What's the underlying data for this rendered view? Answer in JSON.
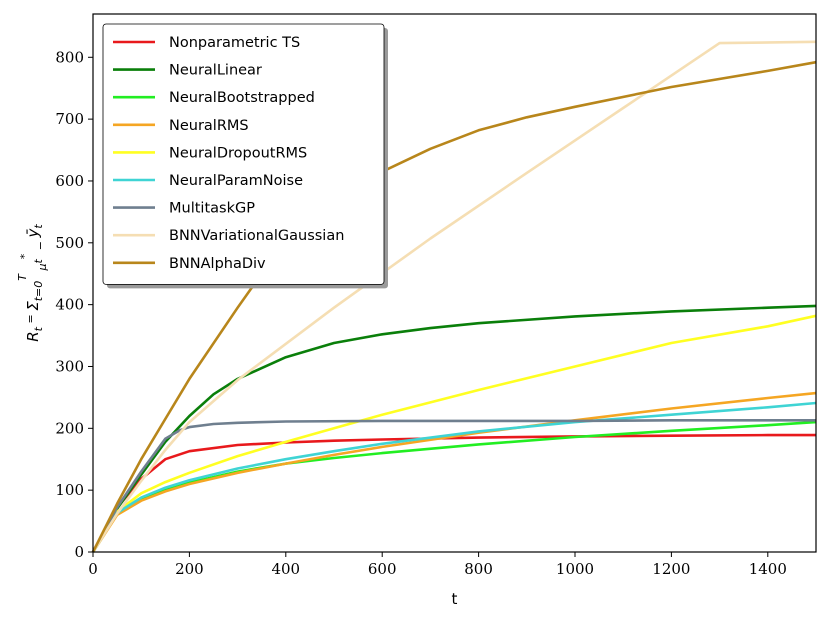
{
  "chart_data": {
    "type": "line",
    "xlabel": "t",
    "ylabel": "R_t = Σ_{t=0}^{T} μ*_t − ȳ_t",
    "xlim": [
      0,
      1500
    ],
    "ylim": [
      0,
      870
    ],
    "xticks": [
      0,
      200,
      400,
      600,
      800,
      1000,
      1200,
      1400
    ],
    "yticks": [
      0,
      100,
      200,
      300,
      400,
      500,
      600,
      700,
      800
    ],
    "grid": false,
    "legend_position": "top-left",
    "series": [
      {
        "name": "Nonparametric TS",
        "color": "#e8191c",
        "x": [
          0,
          50,
          100,
          150,
          200,
          300,
          400,
          500,
          600,
          800,
          1000,
          1200,
          1400,
          1500
        ],
        "values": [
          0,
          72,
          118,
          150,
          163,
          173,
          177,
          180,
          182,
          185,
          187,
          188,
          189,
          189
        ]
      },
      {
        "name": "NeuralLinear",
        "color": "#0a7f0a",
        "x": [
          0,
          50,
          100,
          150,
          200,
          250,
          300,
          400,
          500,
          600,
          700,
          800,
          1000,
          1200,
          1400,
          1500
        ],
        "values": [
          0,
          70,
          125,
          178,
          220,
          255,
          280,
          315,
          338,
          352,
          362,
          370,
          381,
          389,
          395,
          398
        ]
      },
      {
        "name": "NeuralBootstrapped",
        "color": "#22ee22",
        "x": [
          0,
          50,
          100,
          150,
          200,
          300,
          400,
          500,
          600,
          800,
          1000,
          1200,
          1400,
          1500
        ],
        "values": [
          0,
          62,
          85,
          100,
          112,
          130,
          143,
          152,
          160,
          174,
          186,
          196,
          205,
          210
        ]
      },
      {
        "name": "NeuralRMS",
        "color": "#f5a623",
        "x": [
          0,
          50,
          100,
          150,
          200,
          300,
          400,
          500,
          600,
          800,
          1000,
          1200,
          1400,
          1500
        ],
        "values": [
          0,
          60,
          83,
          98,
          110,
          128,
          143,
          157,
          170,
          193,
          213,
          232,
          249,
          257
        ]
      },
      {
        "name": "NeuralDropoutRMS",
        "color": "#ffff22",
        "x": [
          0,
          50,
          100,
          150,
          200,
          300,
          400,
          500,
          600,
          800,
          1000,
          1200,
          1400,
          1500
        ],
        "values": [
          0,
          65,
          95,
          113,
          128,
          155,
          178,
          200,
          222,
          262,
          300,
          338,
          365,
          382
        ]
      },
      {
        "name": "NeuralParamNoise",
        "color": "#3fd4d4",
        "x": [
          0,
          50,
          100,
          150,
          200,
          300,
          400,
          500,
          600,
          800,
          1000,
          1200,
          1400,
          1500
        ],
        "values": [
          0,
          63,
          88,
          104,
          116,
          135,
          150,
          163,
          175,
          195,
          210,
          222,
          234,
          241
        ]
      },
      {
        "name": "MultitaskGP",
        "color": "#6f7f8f",
        "x": [
          0,
          50,
          100,
          150,
          180,
          200,
          250,
          300,
          400,
          600,
          800,
          1000,
          1200,
          1500
        ],
        "values": [
          0,
          72,
          130,
          183,
          197,
          202,
          207,
          209,
          211,
          212,
          212,
          212,
          213,
          213
        ]
      },
      {
        "name": "BNNVariationalGaussian",
        "color": "#f5deb3",
        "x": [
          0,
          50,
          100,
          150,
          200,
          300,
          500,
          700,
          900,
          1100,
          1300,
          1500
        ],
        "values": [
          0,
          62,
          115,
          165,
          210,
          278,
          395,
          507,
          613,
          718,
          823,
          825
        ]
      },
      {
        "name": "BNNAlphaDiv",
        "color": "#b8861b",
        "x": [
          0,
          50,
          100,
          150,
          200,
          300,
          400,
          500,
          600,
          700,
          800,
          900,
          1000,
          1200,
          1400,
          1500
        ],
        "values": [
          0,
          78,
          150,
          215,
          280,
          395,
          505,
          570,
          615,
          652,
          682,
          703,
          720,
          752,
          778,
          792
        ]
      }
    ]
  }
}
